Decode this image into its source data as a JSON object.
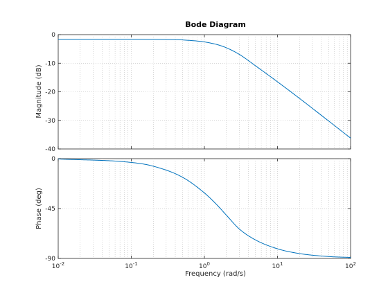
{
  "chart_data": {
    "type": "line",
    "title": "Bode Diagram",
    "xlabel": "Frequency  (rad/s)",
    "xscale": "log",
    "xlim": [
      0.01,
      100
    ],
    "x_ticks": [
      {
        "base": "10",
        "exp": "-2"
      },
      {
        "base": "10",
        "exp": "-1"
      },
      {
        "base": "10",
        "exp": "0"
      },
      {
        "base": "10",
        "exp": "1"
      },
      {
        "base": "10",
        "exp": "2"
      }
    ],
    "grid": true,
    "line_color": "#0072bd",
    "panels": [
      {
        "ylabel": "Magnitude (dB)",
        "ylim": [
          -40,
          0
        ],
        "yticks": [
          "0",
          "-10",
          "-20",
          "-30",
          "-40"
        ],
        "series": [
          {
            "x": [
              0.01,
              0.1,
              0.3,
              0.5,
              1,
              1.5,
              2,
              3,
              5,
              10,
              20,
              50,
              100
            ],
            "y": [
              -1.58,
              -1.58,
              -1.68,
              -1.85,
              -2.55,
              -3.5,
              -4.6,
              -6.9,
              -10.9,
              -16.5,
              -22.3,
              -30.2,
              -36.2
            ]
          }
        ]
      },
      {
        "ylabel": "Phase (deg)",
        "ylim": [
          -90,
          0
        ],
        "yticks": [
          "0",
          "-45",
          "-90"
        ],
        "series": [
          {
            "x": [
              0.01,
              0.1,
              0.2,
              0.5,
              1,
              1.5,
              2,
              3,
              5,
              10,
              20,
              50,
              100
            ],
            "y": [
              -0.3,
              -3.4,
              -6.8,
              -16.7,
              -30.9,
              -42,
              -51,
              -63.4,
              -73.3,
              -81.3,
              -85.6,
              -88.3,
              -89.1
            ]
          }
        ]
      }
    ]
  }
}
